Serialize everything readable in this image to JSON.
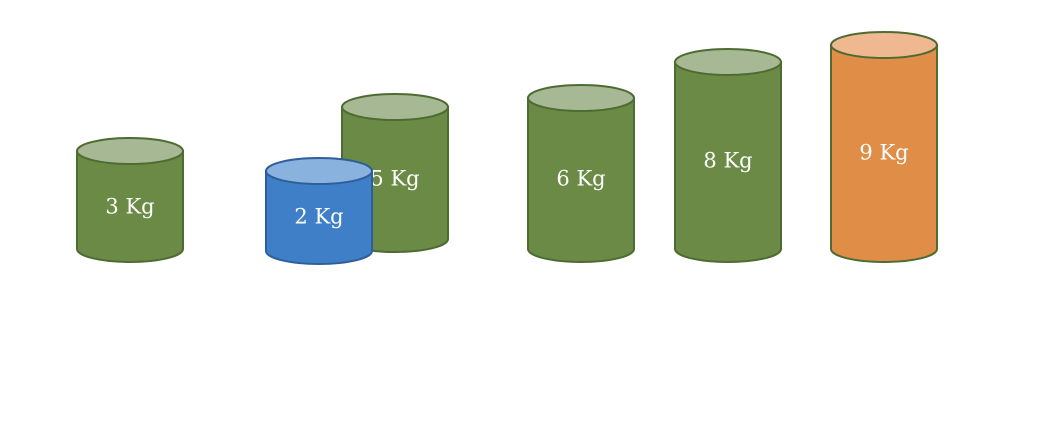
{
  "cylinders": [
    {
      "id": "c3",
      "label": "3 Kg",
      "color": "green"
    },
    {
      "id": "c5",
      "label": "5 Kg",
      "color": "green"
    },
    {
      "id": "c2",
      "label": "2 Kg",
      "color": "blue"
    },
    {
      "id": "c6",
      "label": "6 Kg",
      "color": "green"
    },
    {
      "id": "c8",
      "label": "8 Kg",
      "color": "green"
    },
    {
      "id": "c9",
      "label": "9 Kg",
      "color": "orange"
    }
  ],
  "colors": {
    "green": {
      "body": "#6a8a45",
      "top": "#a6b994",
      "stroke": "#4e6b32"
    },
    "blue": {
      "body": "#3f7fc7",
      "top": "#8ab2de",
      "stroke": "#2f5f99"
    },
    "orange": {
      "body": "#e08d48",
      "top": "#efb890",
      "stroke": "#4e6b32"
    }
  }
}
